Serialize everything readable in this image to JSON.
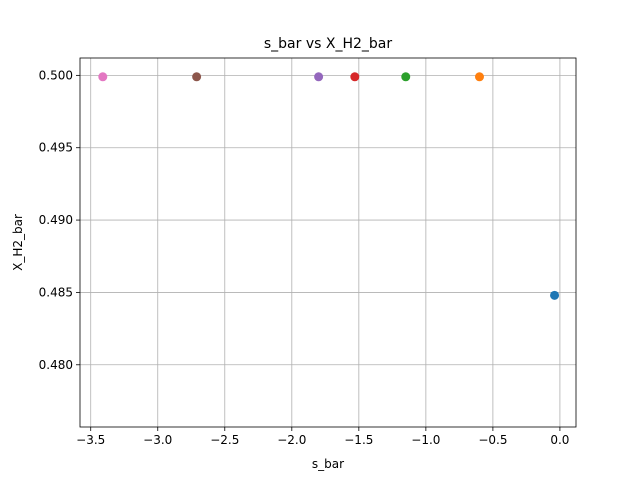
{
  "chart_data": {
    "type": "scatter",
    "title": "s_bar vs X_H2_bar",
    "xlabel": "s_bar",
    "ylabel": "X_H2_bar",
    "xlim": [
      -3.58,
      0.12
    ],
    "ylim": [
      0.4757,
      0.5012
    ],
    "grid": true,
    "xticks": [
      -3.5,
      -3.0,
      -2.5,
      -2.0,
      -1.5,
      -1.0,
      -0.5,
      0.0
    ],
    "xtick_labels": [
      "−3.5",
      "−3.0",
      "−2.5",
      "−2.0",
      "−1.5",
      "−1.0",
      "−0.5",
      "0.0"
    ],
    "yticks": [
      0.48,
      0.485,
      0.49,
      0.495,
      0.5
    ],
    "ytick_labels": [
      "0.480",
      "0.485",
      "0.490",
      "0.495",
      "0.500"
    ],
    "points": [
      {
        "x": -0.04,
        "y": 0.4848,
        "color": "#1f77b4"
      },
      {
        "x": -0.6,
        "y": 0.4999,
        "color": "#ff7f0e"
      },
      {
        "x": -1.15,
        "y": 0.4999,
        "color": "#2ca02c"
      },
      {
        "x": -1.53,
        "y": 0.4999,
        "color": "#d62728"
      },
      {
        "x": -1.8,
        "y": 0.4999,
        "color": "#9467bd"
      },
      {
        "x": -2.71,
        "y": 0.4999,
        "color": "#8c564b"
      },
      {
        "x": -3.41,
        "y": 0.4999,
        "color": "#e377c2"
      }
    ]
  }
}
